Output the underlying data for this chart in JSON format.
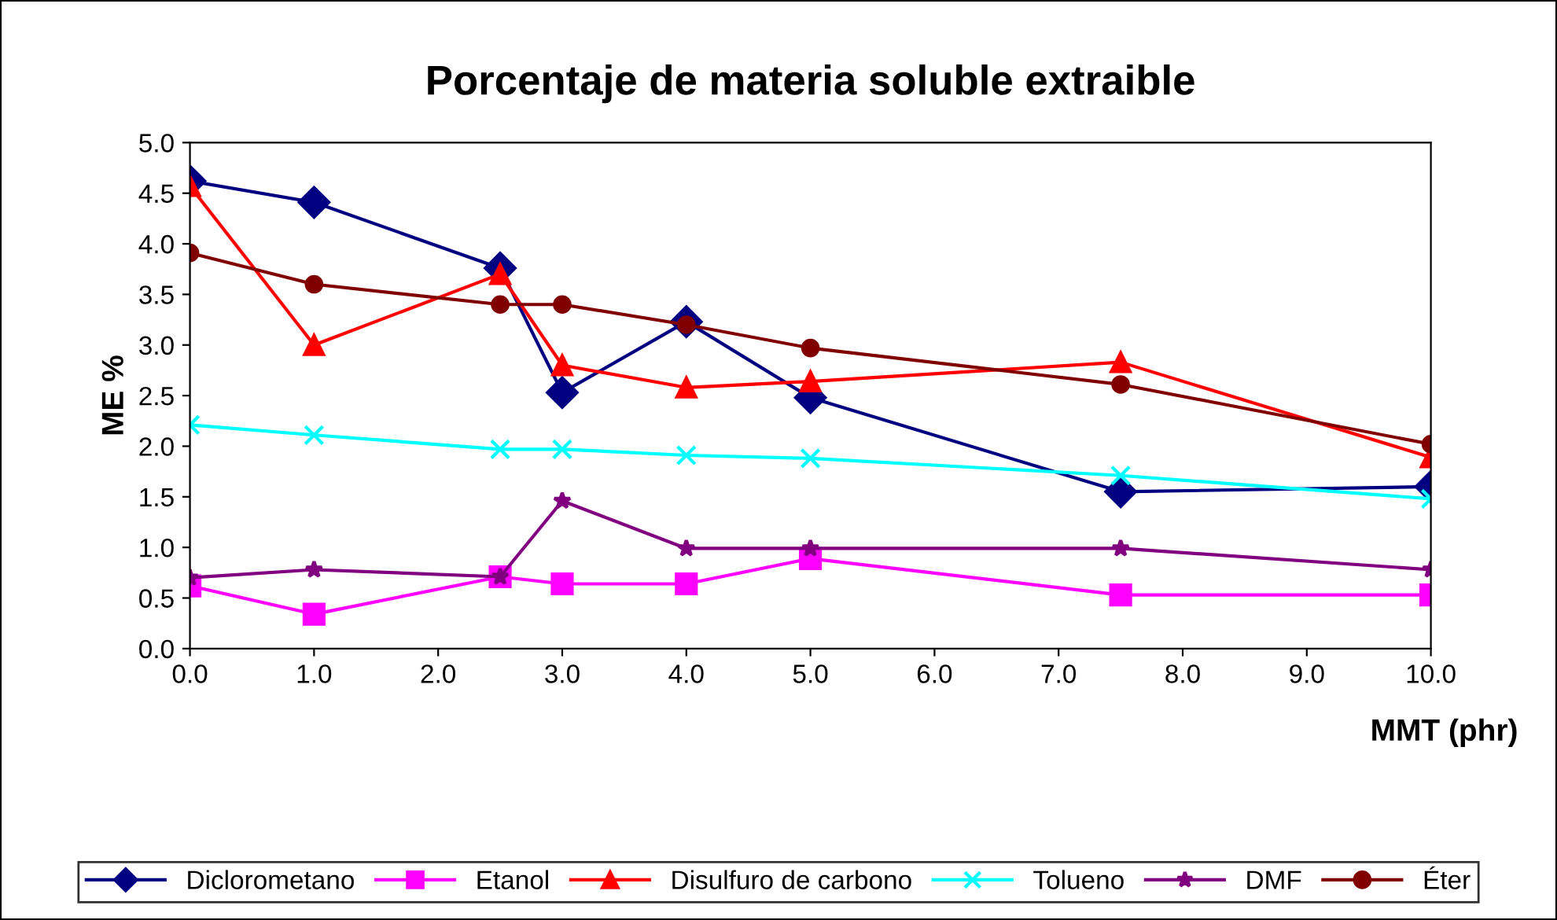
{
  "chart_data": {
    "type": "line",
    "title": "Porcentaje de materia soluble extraible",
    "xlabel": "MMT (phr)",
    "ylabel": "ME %",
    "x": [
      0,
      1,
      2.5,
      3,
      4,
      5,
      7.5,
      10
    ],
    "xlim": [
      0,
      10
    ],
    "xticks": [
      {
        "value": 0,
        "label": "0.0"
      },
      {
        "value": 1,
        "label": "1.0"
      },
      {
        "value": 2,
        "label": "2.0"
      },
      {
        "value": 3,
        "label": "3.0"
      },
      {
        "value": 4,
        "label": "4.0"
      },
      {
        "value": 5,
        "label": "5.0"
      },
      {
        "value": 6,
        "label": "6.0"
      },
      {
        "value": 7,
        "label": "7.0"
      },
      {
        "value": 8,
        "label": "8.0"
      },
      {
        "value": 9,
        "label": "9.0"
      },
      {
        "value": 10,
        "label": "10.0"
      }
    ],
    "ylim": [
      0,
      5
    ],
    "yticks": [
      {
        "value": 0,
        "label": "0.0"
      },
      {
        "value": 0.5,
        "label": "0.5"
      },
      {
        "value": 1,
        "label": "1.0"
      },
      {
        "value": 1.5,
        "label": "1.5"
      },
      {
        "value": 2,
        "label": "2.0"
      },
      {
        "value": 2.5,
        "label": "2.5"
      },
      {
        "value": 3,
        "label": "3.0"
      },
      {
        "value": 3.5,
        "label": "3.5"
      },
      {
        "value": 4,
        "label": "4.0"
      },
      {
        "value": 4.5,
        "label": "4.5"
      },
      {
        "value": 5,
        "label": "5.0"
      }
    ],
    "grid": false,
    "legend": "bottom",
    "line_style": "solid",
    "series": [
      {
        "name": "Diclorometano",
        "color": "#000080",
        "marker": "diamond",
        "values": [
          4.62,
          4.41,
          3.76,
          2.53,
          3.23,
          2.48,
          1.55,
          1.6
        ]
      },
      {
        "name": "Etanol",
        "color": "#ff00ff",
        "marker": "square",
        "values": [
          0.62,
          0.34,
          0.71,
          0.64,
          0.64,
          0.89,
          0.53,
          0.53
        ]
      },
      {
        "name": "Disulfuro de carbono",
        "color": "#ff0000",
        "marker": "triangle",
        "values": [
          4.57,
          3.0,
          3.7,
          2.8,
          2.58,
          2.64,
          2.83,
          1.89
        ]
      },
      {
        "name": "Tolueno",
        "color": "#00ffff",
        "marker": "cross",
        "values": [
          2.21,
          2.11,
          1.97,
          1.97,
          1.91,
          1.88,
          1.71,
          1.48
        ]
      },
      {
        "name": "DMF",
        "color": "#800080",
        "marker": "star",
        "values": [
          0.7,
          0.78,
          0.71,
          1.46,
          0.99,
          0.99,
          0.99,
          0.78
        ]
      },
      {
        "name": "Éter",
        "color": "#800000",
        "marker": "circle",
        "values": [
          3.91,
          3.6,
          3.4,
          3.4,
          3.2,
          2.97,
          2.61,
          2.02
        ]
      }
    ]
  }
}
